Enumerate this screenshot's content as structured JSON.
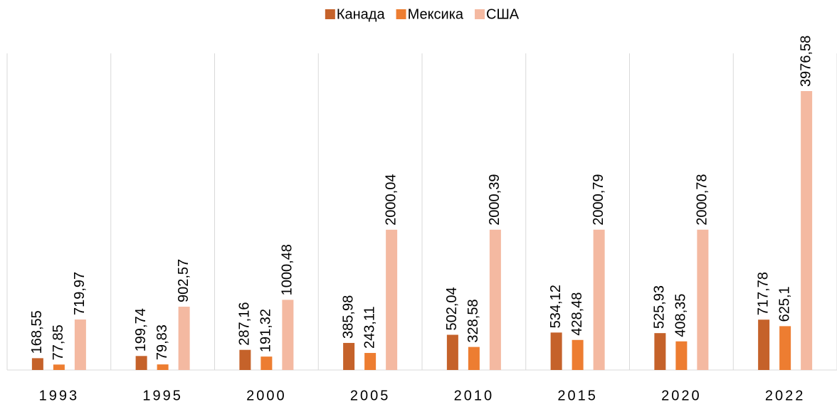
{
  "chart_data": {
    "type": "bar",
    "categories": [
      "1993",
      "1995",
      "2000",
      "2005",
      "2010",
      "2015",
      "2020",
      "2022"
    ],
    "series": [
      {
        "name": "Канада",
        "color": "#c5622a",
        "values": [
          168.55,
          199.74,
          287.16,
          385.98,
          502.04,
          534.12,
          525.93,
          717.78
        ],
        "value_labels": [
          "168,55",
          "199,74",
          "287,16",
          "385,98",
          "502,04",
          "534,12",
          "525,93",
          "717,78"
        ]
      },
      {
        "name": "Мексика",
        "color": "#ed7d31",
        "values": [
          77.85,
          79.83,
          191.32,
          243.11,
          328.58,
          428.48,
          408.35,
          625.1
        ],
        "value_labels": [
          "77,85",
          "79,83",
          "191,32",
          "243,11",
          "328,58",
          "428,48",
          "408,35",
          "625,1"
        ]
      },
      {
        "name": "США",
        "color": "#f4b9a1",
        "values": [
          719.97,
          902.57,
          1000.48,
          2000.04,
          2000.39,
          2000.79,
          2000.78,
          3976.58
        ],
        "value_labels": [
          "719,97",
          "902,57",
          "1000,48",
          "2000,04",
          "2000,39",
          "2000,79",
          "2000,78",
          "3976,58"
        ]
      }
    ],
    "ylim": [
      0,
      4000
    ],
    "legend": "top"
  }
}
